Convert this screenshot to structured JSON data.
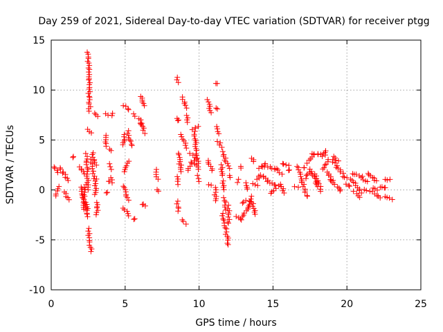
{
  "chart_data": {
    "type": "scatter",
    "title": "Day 259 of 2021, Sidereal Day-to-day VTEC variation (SDTVAR) for receiver ptgg",
    "xlabel": "GPS time / hours",
    "ylabel": "SDTVAR / TECUs",
    "xlim": [
      0,
      25
    ],
    "ylim": [
      -10,
      15
    ],
    "xticks": [
      0,
      5,
      10,
      15,
      20,
      25
    ],
    "yticks": [
      -10,
      -5,
      0,
      5,
      10,
      15
    ],
    "grid": true,
    "marker": "plus",
    "color": "#ff0000",
    "segments": [
      [
        0.2,
        2.3,
        0.5,
        1.8
      ],
      [
        0.3,
        -0.6,
        0.5,
        0.3
      ],
      [
        0.6,
        2.2,
        0.9,
        1.5
      ],
      [
        0.9,
        -0.2,
        1.2,
        -1.0
      ],
      [
        1.0,
        1.3,
        1.2,
        1.0
      ],
      [
        1.5,
        3.3,
        1.5,
        3.3
      ],
      [
        1.9,
        2.3,
        2.3,
        1.6
      ],
      [
        2.0,
        0.3,
        2.3,
        -1.9
      ],
      [
        2.2,
        -2.0,
        2.3,
        0.5
      ],
      [
        2.4,
        3.6,
        2.5,
        0.0
      ],
      [
        2.4,
        -1.2,
        2.5,
        -2.7
      ],
      [
        2.5,
        13.8,
        2.6,
        7.9
      ],
      [
        2.5,
        6.1,
        2.7,
        5.7
      ],
      [
        2.5,
        -3.9,
        2.7,
        -6.2
      ],
      [
        2.7,
        3.0,
        2.9,
        1.2
      ],
      [
        2.8,
        3.7,
        3.0,
        2.5
      ],
      [
        2.9,
        7.7,
        3.2,
        7.4
      ],
      [
        3.0,
        1.1,
        3.0,
        -0.5
      ],
      [
        3.1,
        -1.2,
        3.1,
        -2.5
      ],
      [
        3.7,
        7.7,
        3.8,
        7.5
      ],
      [
        3.7,
        5.4,
        3.7,
        4.4
      ],
      [
        3.8,
        -0.3,
        3.8,
        -0.3
      ],
      [
        3.9,
        0.8,
        3.9,
        0.8
      ],
      [
        4.0,
        2.6,
        4.0,
        2.1
      ],
      [
        4.0,
        4.0,
        4.0,
        4.0
      ],
      [
        4.1,
        7.7,
        4.1,
        7.5
      ],
      [
        4.1,
        1.2,
        4.1,
        0.7
      ],
      [
        4.9,
        8.5,
        5.3,
        8.0
      ],
      [
        4.9,
        4.5,
        5.0,
        5.5
      ],
      [
        5.0,
        1.8,
        5.2,
        2.9
      ],
      [
        4.9,
        0.4,
        5.2,
        -1.0
      ],
      [
        4.9,
        -1.8,
        5.3,
        -2.6
      ],
      [
        5.2,
        5.9,
        5.4,
        4.4
      ],
      [
        5.6,
        7.6,
        5.6,
        7.4
      ],
      [
        5.6,
        -2.9,
        5.6,
        -2.9
      ],
      [
        6.1,
        9.4,
        6.3,
        8.4
      ],
      [
        6.0,
        7.2,
        6.3,
        5.7
      ],
      [
        6.1,
        6.6,
        6.1,
        6.6
      ],
      [
        6.2,
        -1.4,
        6.4,
        -1.6
      ],
      [
        7.1,
        2.0,
        7.2,
        1.1
      ],
      [
        7.1,
        0.0,
        7.2,
        -0.1
      ],
      [
        8.5,
        11.2,
        8.6,
        10.8
      ],
      [
        8.5,
        7.2,
        8.6,
        6.9
      ],
      [
        8.5,
        1.3,
        8.6,
        0.6
      ],
      [
        8.5,
        -1.2,
        8.6,
        -2.1
      ],
      [
        8.6,
        3.7,
        8.8,
        1.8
      ],
      [
        8.8,
        5.5,
        9.2,
        4.2
      ],
      [
        8.9,
        9.3,
        9.1,
        8.2
      ],
      [
        8.9,
        -3.0,
        9.1,
        -3.4
      ],
      [
        9.2,
        7.5,
        9.2,
        6.8
      ],
      [
        9.2,
        2.0,
        9.6,
        3.0
      ],
      [
        9.4,
        3.6,
        9.7,
        3.3
      ],
      [
        9.6,
        6.0,
        9.9,
        6.4
      ],
      [
        9.7,
        2.6,
        10.0,
        2.1
      ],
      [
        9.7,
        5.8,
        9.9,
        2.6
      ],
      [
        9.9,
        1.4,
        10.0,
        0.9
      ],
      [
        10.6,
        9.0,
        10.8,
        7.8
      ],
      [
        10.6,
        3.0,
        10.9,
        1.9
      ],
      [
        10.7,
        0.5,
        10.8,
        0.5
      ],
      [
        11.1,
        10.7,
        11.2,
        10.6
      ],
      [
        11.1,
        8.2,
        11.2,
        8.1
      ],
      [
        11.1,
        0.2,
        11.1,
        -1.1
      ],
      [
        11.2,
        6.3,
        11.3,
        5.7
      ],
      [
        11.3,
        4.9,
        11.5,
        4.2
      ],
      [
        11.5,
        2.5,
        11.6,
        1.4
      ],
      [
        11.6,
        0.9,
        11.7,
        0.0
      ],
      [
        11.6,
        -2.4,
        12.0,
        -5.5
      ],
      [
        11.7,
        -0.8,
        11.8,
        -2.0
      ],
      [
        11.6,
        3.8,
        12.0,
        2.2
      ],
      [
        12.0,
        -1.6,
        12.0,
        -3.4
      ],
      [
        12.1,
        1.5,
        12.1,
        1.3
      ],
      [
        12.5,
        -2.6,
        12.9,
        -3.0
      ],
      [
        12.6,
        1.0,
        12.6,
        0.8
      ],
      [
        12.8,
        2.3,
        12.9,
        2.2
      ],
      [
        12.9,
        -1.3,
        13.2,
        -1.0
      ],
      [
        13.0,
        -2.7,
        13.3,
        -1.8
      ],
      [
        13.1,
        0.7,
        13.3,
        0.1
      ],
      [
        13.3,
        -1.6,
        13.6,
        -0.7
      ],
      [
        13.6,
        3.2,
        13.7,
        2.9
      ],
      [
        13.6,
        0.6,
        13.9,
        0.5
      ],
      [
        13.6,
        -1.2,
        13.8,
        -2.5
      ],
      [
        13.9,
        1.1,
        14.2,
        1.5
      ],
      [
        14.1,
        2.1,
        14.5,
        2.6
      ],
      [
        14.3,
        2.4,
        15.2,
        2.1
      ],
      [
        14.3,
        1.4,
        14.6,
        1.0
      ],
      [
        14.6,
        0.8,
        15.5,
        0.3
      ],
      [
        14.8,
        -0.3,
        15.2,
        0.1
      ],
      [
        15.2,
        2.1,
        15.6,
        1.6
      ],
      [
        15.5,
        0.5,
        15.8,
        -0.3
      ],
      [
        15.6,
        2.6,
        16.1,
        2.4
      ],
      [
        16.1,
        2.0,
        16.1,
        2.0
      ],
      [
        16.5,
        0.4,
        16.7,
        0.3
      ],
      [
        16.6,
        2.4,
        17.0,
        0.7
      ],
      [
        17.0,
        0.7,
        17.3,
        -0.7
      ],
      [
        17.1,
        2.2,
        17.1,
        2.2
      ],
      [
        17.2,
        1.2,
        17.4,
        1.8
      ],
      [
        17.3,
        2.7,
        17.7,
        3.5
      ],
      [
        17.5,
        2.1,
        18.2,
        -0.1
      ],
      [
        17.8,
        1.6,
        18.2,
        0.4
      ],
      [
        17.7,
        3.6,
        18.4,
        3.6
      ],
      [
        18.4,
        2.1,
        18.8,
        3.0
      ],
      [
        18.4,
        3.3,
        18.6,
        3.9
      ],
      [
        18.7,
        1.8,
        19.0,
        0.9
      ],
      [
        18.9,
        1.0,
        19.6,
        -0.1
      ],
      [
        19.0,
        3.0,
        19.7,
        1.6
      ],
      [
        19.1,
        3.3,
        19.4,
        2.9
      ],
      [
        19.7,
        1.3,
        20.0,
        1.2
      ],
      [
        20.0,
        0.6,
        20.2,
        0.3
      ],
      [
        20.2,
        1.1,
        20.6,
        0.7
      ],
      [
        20.4,
        1.6,
        21.0,
        1.4
      ],
      [
        20.5,
        -0.2,
        20.8,
        -0.8
      ],
      [
        20.6,
        0.4,
        21.0,
        -0.3
      ],
      [
        21.0,
        1.2,
        21.4,
        0.8
      ],
      [
        21.2,
        0.0,
        21.7,
        -0.2
      ],
      [
        21.4,
        1.6,
        21.6,
        1.4
      ],
      [
        21.7,
        1.3,
        22.0,
        0.9
      ],
      [
        21.8,
        0.2,
        22.1,
        0.0
      ],
      [
        21.9,
        -0.4,
        22.3,
        -0.8
      ],
      [
        22.2,
        0.3,
        22.6,
        0.2
      ],
      [
        22.6,
        1.0,
        22.9,
        1.0
      ],
      [
        22.6,
        -0.7,
        23.0,
        -0.9
      ]
    ]
  }
}
